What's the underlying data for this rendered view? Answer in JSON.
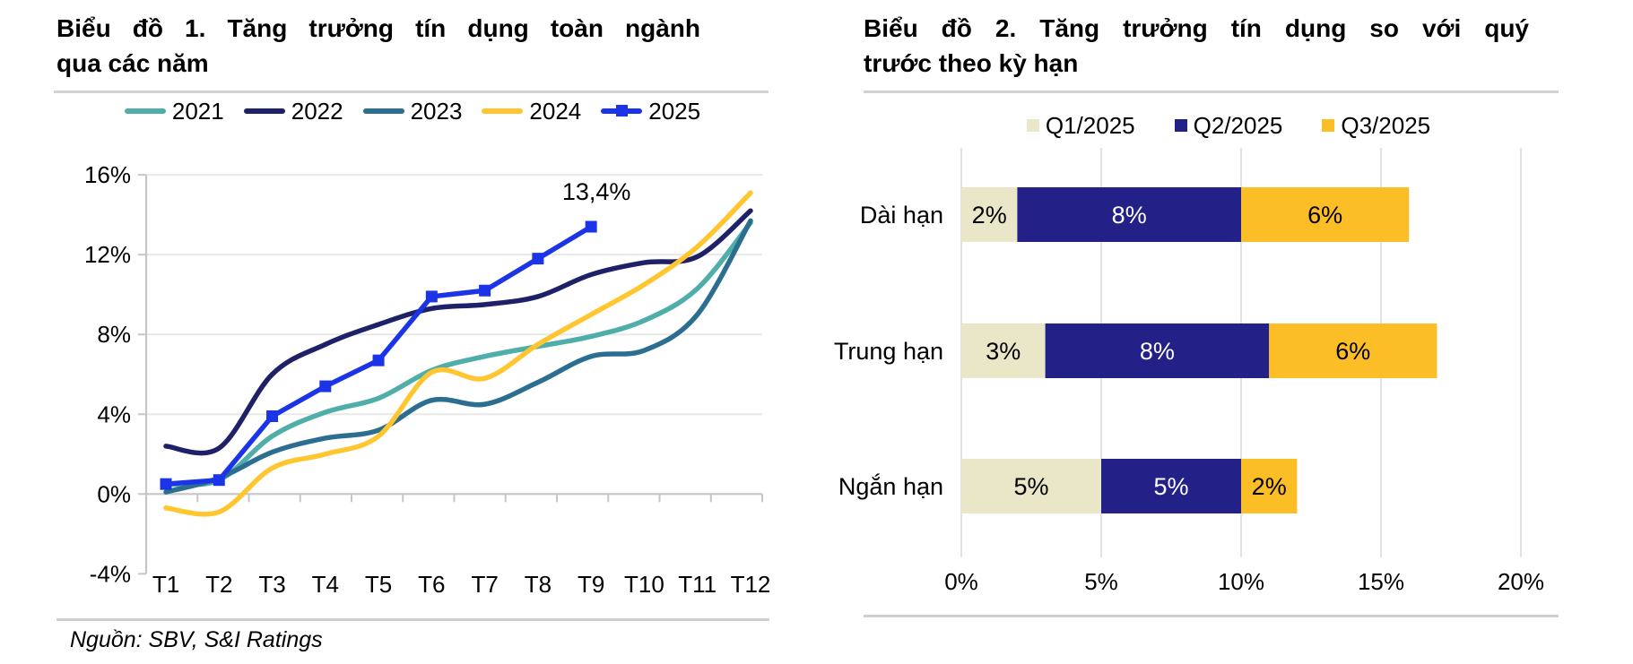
{
  "page": {
    "source_note": "Nguồn: SBV, S&I Ratings"
  },
  "chart_data": [
    {
      "type": "line",
      "title": "Biểu đồ 1. Tăng trưởng tín dụng toàn ngành qua các năm",
      "title_lines": [
        "Biểu đồ 1. Tăng trưởng tín dụng toàn ngành",
        "qua các năm"
      ],
      "unit": "%",
      "x": [
        "T1",
        "T2",
        "T3",
        "T4",
        "T5",
        "T6",
        "T7",
        "T8",
        "T9",
        "T10",
        "T11",
        "T12"
      ],
      "ylim": [
        -4,
        16
      ],
      "grid": "horizontal",
      "legend_position": "top",
      "yticks": [
        {
          "value": 16,
          "label": "16%"
        },
        {
          "value": 12,
          "label": "12%"
        },
        {
          "value": 8,
          "label": "8%"
        },
        {
          "value": 4,
          "label": "4%"
        },
        {
          "value": 0,
          "label": "0%"
        },
        {
          "value": -4,
          "label": "-4%"
        }
      ],
      "series": [
        {
          "name": "2021",
          "color": "#4FAEA9",
          "values": [
            0.5,
            0.7,
            2.9,
            4.1,
            4.8,
            6.2,
            6.9,
            7.4,
            7.9,
            8.7,
            10.3,
            13.6
          ]
        },
        {
          "name": "2022",
          "color": "#1E2168",
          "values": [
            2.4,
            2.3,
            6.0,
            7.5,
            8.5,
            9.3,
            9.5,
            9.9,
            11.0,
            11.6,
            11.9,
            14.2
          ]
        },
        {
          "name": "2023",
          "color": "#2B6E90",
          "values": [
            0.1,
            0.8,
            2.1,
            2.8,
            3.2,
            4.7,
            4.5,
            5.6,
            6.9,
            7.2,
            9.0,
            13.7
          ]
        },
        {
          "name": "2024",
          "color": "#FFC630",
          "values": [
            -0.7,
            -0.9,
            1.3,
            2.0,
            2.9,
            6.1,
            5.8,
            7.5,
            9.0,
            10.5,
            12.4,
            15.1
          ]
        },
        {
          "name": "2025",
          "color": "#1C34E8",
          "marker": "square",
          "values": [
            0.5,
            0.7,
            3.9,
            5.4,
            6.7,
            9.9,
            10.2,
            11.8,
            13.4
          ],
          "annotation": {
            "text": "13,4%",
            "index": 8
          }
        }
      ]
    },
    {
      "type": "bar",
      "orientation": "horizontal",
      "stacked": true,
      "title": "Biểu đồ 2. Tăng trưởng tín dụng so với quý trước theo kỳ hạn",
      "title_lines": [
        "Biểu đồ 2. Tăng trưởng tín dụng so với quý",
        "trước theo kỳ hạn"
      ],
      "unit": "%",
      "categories": [
        "Dài hạn",
        "Trung hạn",
        "Ngắn hạn"
      ],
      "xlim": [
        0,
        20
      ],
      "grid": "vertical",
      "legend_position": "top",
      "xticks": [
        {
          "value": 0,
          "label": "0%"
        },
        {
          "value": 5,
          "label": "5%"
        },
        {
          "value": 10,
          "label": "10%"
        },
        {
          "value": 15,
          "label": "15%"
        },
        {
          "value": 20,
          "label": "20%"
        }
      ],
      "series": [
        {
          "name": "Q1/2025",
          "color": "#EAE6C8",
          "label_color": "#000000",
          "values": [
            2,
            3,
            5
          ],
          "labels": [
            "2%",
            "3%",
            "5%"
          ]
        },
        {
          "name": "Q2/2025",
          "color": "#232188",
          "label_color": "#FFFFFF",
          "values": [
            8,
            8,
            5
          ],
          "labels": [
            "8%",
            "8%",
            "5%"
          ]
        },
        {
          "name": "Q3/2025",
          "color": "#FBBE26",
          "label_color": "#000000",
          "values": [
            6,
            6,
            2
          ],
          "labels": [
            "6%",
            "6%",
            "2%"
          ]
        }
      ]
    }
  ]
}
